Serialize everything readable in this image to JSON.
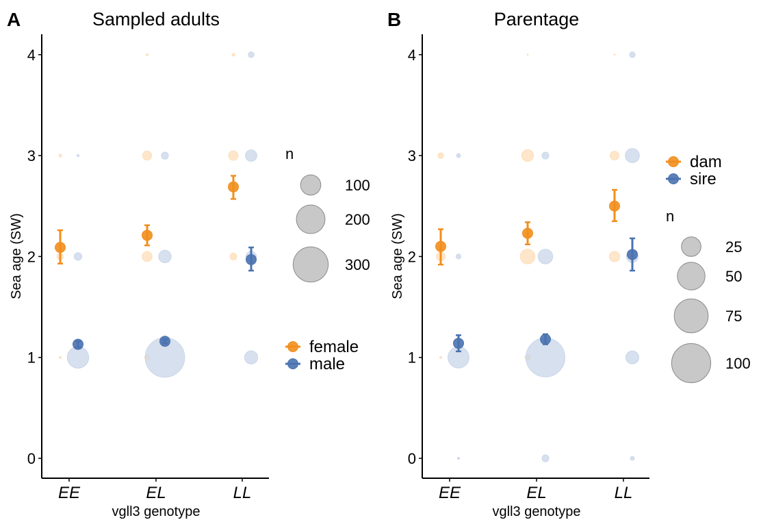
{
  "colors": {
    "female": "#F28E1C",
    "male": "#4A72B0",
    "female_light": "#FDDDB8",
    "male_light": "#C9D6E8",
    "size_legend_fill": "#C8C8C8",
    "size_legend_stroke": "#8A8A8A"
  },
  "chart_data": [
    {
      "type": "scatter",
      "panel_label": "A",
      "title": "Sampled adults",
      "xlabel": "vgll3 genotype",
      "ylabel": "Sea age (SW)",
      "categories": [
        "EE",
        "EL",
        "LL"
      ],
      "x_tick_labels": [
        "EE",
        "EL",
        "LL"
      ],
      "yticks": [
        "0",
        "1",
        "2",
        "3",
        "4"
      ],
      "ylim": [
        0,
        4
      ],
      "grid": false,
      "size_legend_title": "n",
      "size_legend": [
        {
          "n": 100,
          "label": "100"
        },
        {
          "n": 200,
          "label": "200"
        },
        {
          "n": 300,
          "label": "300"
        }
      ],
      "color_legend": [
        {
          "key": "female",
          "label": "female"
        },
        {
          "key": "male",
          "label": "male"
        }
      ],
      "counts": [
        {
          "sex": "female",
          "genotype": "EE",
          "age": 1,
          "n": 1
        },
        {
          "sex": "female",
          "genotype": "EE",
          "age": 2,
          "n": 10
        },
        {
          "sex": "female",
          "genotype": "EE",
          "age": 3,
          "n": 2
        },
        {
          "sex": "female",
          "genotype": "EL",
          "age": 1,
          "n": 6
        },
        {
          "sex": "female",
          "genotype": "EL",
          "age": 2,
          "n": 24
        },
        {
          "sex": "female",
          "genotype": "EL",
          "age": 3,
          "n": 20
        },
        {
          "sex": "female",
          "genotype": "EL",
          "age": 4,
          "n": 1
        },
        {
          "sex": "female",
          "genotype": "LL",
          "age": 2,
          "n": 11
        },
        {
          "sex": "female",
          "genotype": "LL",
          "age": 3,
          "n": 22
        },
        {
          "sex": "female",
          "genotype": "LL",
          "age": 4,
          "n": 2
        },
        {
          "sex": "male",
          "genotype": "EE",
          "age": 1,
          "n": 112
        },
        {
          "sex": "male",
          "genotype": "EE",
          "age": 2,
          "n": 14
        },
        {
          "sex": "male",
          "genotype": "EE",
          "age": 3,
          "n": 1
        },
        {
          "sex": "male",
          "genotype": "EL",
          "age": 1,
          "n": 380
        },
        {
          "sex": "male",
          "genotype": "EL",
          "age": 2,
          "n": 38
        },
        {
          "sex": "male",
          "genotype": "EL",
          "age": 3,
          "n": 12
        },
        {
          "sex": "male",
          "genotype": "LL",
          "age": 1,
          "n": 42
        },
        {
          "sex": "male",
          "genotype": "LL",
          "age": 2,
          "n": 26
        },
        {
          "sex": "male",
          "genotype": "LL",
          "age": 3,
          "n": 32
        },
        {
          "sex": "male",
          "genotype": "LL",
          "age": 4,
          "n": 8
        }
      ],
      "means": [
        {
          "sex": "female",
          "genotype": "EE",
          "mean": 2.09,
          "low": 1.93,
          "high": 2.26
        },
        {
          "sex": "female",
          "genotype": "EL",
          "mean": 2.21,
          "low": 2.11,
          "high": 2.31
        },
        {
          "sex": "female",
          "genotype": "LL",
          "mean": 2.69,
          "low": 2.57,
          "high": 2.8
        },
        {
          "sex": "male",
          "genotype": "EE",
          "mean": 1.13,
          "low": 1.1,
          "high": 1.16
        },
        {
          "sex": "male",
          "genotype": "EL",
          "mean": 1.16,
          "low": 1.14,
          "high": 1.18
        },
        {
          "sex": "male",
          "genotype": "LL",
          "mean": 1.97,
          "low": 1.86,
          "high": 2.09
        }
      ]
    },
    {
      "type": "scatter",
      "panel_label": "B",
      "title": "Parentage",
      "xlabel": "vgll3 genotype",
      "ylabel": "Sea age (SW)",
      "categories": [
        "EE",
        "EL",
        "LL"
      ],
      "x_tick_labels": [
        "EE",
        "EL",
        "LL"
      ],
      "yticks": [
        "0",
        "1",
        "2",
        "3",
        "4"
      ],
      "ylim": [
        0,
        4
      ],
      "grid": false,
      "size_legend_title": "n",
      "size_legend": [
        {
          "n": 25,
          "label": "25"
        },
        {
          "n": 50,
          "label": "50"
        },
        {
          "n": 75,
          "label": "75"
        },
        {
          "n": 100,
          "label": "100"
        }
      ],
      "color_legend": [
        {
          "key": "female",
          "label": "dam"
        },
        {
          "key": "male",
          "label": "sire"
        }
      ],
      "counts": [
        {
          "sex": "female",
          "genotype": "EE",
          "age": 1,
          "n": 0.3
        },
        {
          "sex": "female",
          "genotype": "EE",
          "age": 2,
          "n": 5
        },
        {
          "sex": "female",
          "genotype": "EE",
          "age": 3,
          "n": 2
        },
        {
          "sex": "female",
          "genotype": "EL",
          "age": 1,
          "n": 2
        },
        {
          "sex": "female",
          "genotype": "EL",
          "age": 2,
          "n": 14
        },
        {
          "sex": "female",
          "genotype": "EL",
          "age": 3,
          "n": 9
        },
        {
          "sex": "female",
          "genotype": "EL",
          "age": 4,
          "n": 0.1
        },
        {
          "sex": "female",
          "genotype": "LL",
          "age": 2,
          "n": 7
        },
        {
          "sex": "female",
          "genotype": "LL",
          "age": 3,
          "n": 5
        },
        {
          "sex": "female",
          "genotype": "LL",
          "age": 4,
          "n": 0.1
        },
        {
          "sex": "male",
          "genotype": "EE",
          "age": 0,
          "n": 0.3
        },
        {
          "sex": "male",
          "genotype": "EE",
          "age": 1,
          "n": 29
        },
        {
          "sex": "male",
          "genotype": "EE",
          "age": 2,
          "n": 1.5
        },
        {
          "sex": "male",
          "genotype": "EE",
          "age": 3,
          "n": 1
        },
        {
          "sex": "male",
          "genotype": "EL",
          "age": 0,
          "n": 3
        },
        {
          "sex": "male",
          "genotype": "EL",
          "age": 1,
          "n": 99
        },
        {
          "sex": "male",
          "genotype": "EL",
          "age": 2,
          "n": 14
        },
        {
          "sex": "male",
          "genotype": "EL",
          "age": 3,
          "n": 3
        },
        {
          "sex": "male",
          "genotype": "LL",
          "age": 0,
          "n": 1
        },
        {
          "sex": "male",
          "genotype": "LL",
          "age": 1,
          "n": 11
        },
        {
          "sex": "male",
          "genotype": "LL",
          "age": 2,
          "n": 9
        },
        {
          "sex": "male",
          "genotype": "LL",
          "age": 3,
          "n": 13
        },
        {
          "sex": "male",
          "genotype": "LL",
          "age": 4,
          "n": 2
        }
      ],
      "means": [
        {
          "sex": "female",
          "genotype": "EE",
          "mean": 2.1,
          "low": 1.92,
          "high": 2.27
        },
        {
          "sex": "female",
          "genotype": "EL",
          "mean": 2.23,
          "low": 2.12,
          "high": 2.34
        },
        {
          "sex": "female",
          "genotype": "LL",
          "mean": 2.5,
          "low": 2.35,
          "high": 2.66
        },
        {
          "sex": "male",
          "genotype": "EE",
          "mean": 1.14,
          "low": 1.06,
          "high": 1.22
        },
        {
          "sex": "male",
          "genotype": "EL",
          "mean": 1.18,
          "low": 1.13,
          "high": 1.23
        },
        {
          "sex": "male",
          "genotype": "LL",
          "mean": 2.02,
          "low": 1.86,
          "high": 2.18
        }
      ]
    }
  ]
}
